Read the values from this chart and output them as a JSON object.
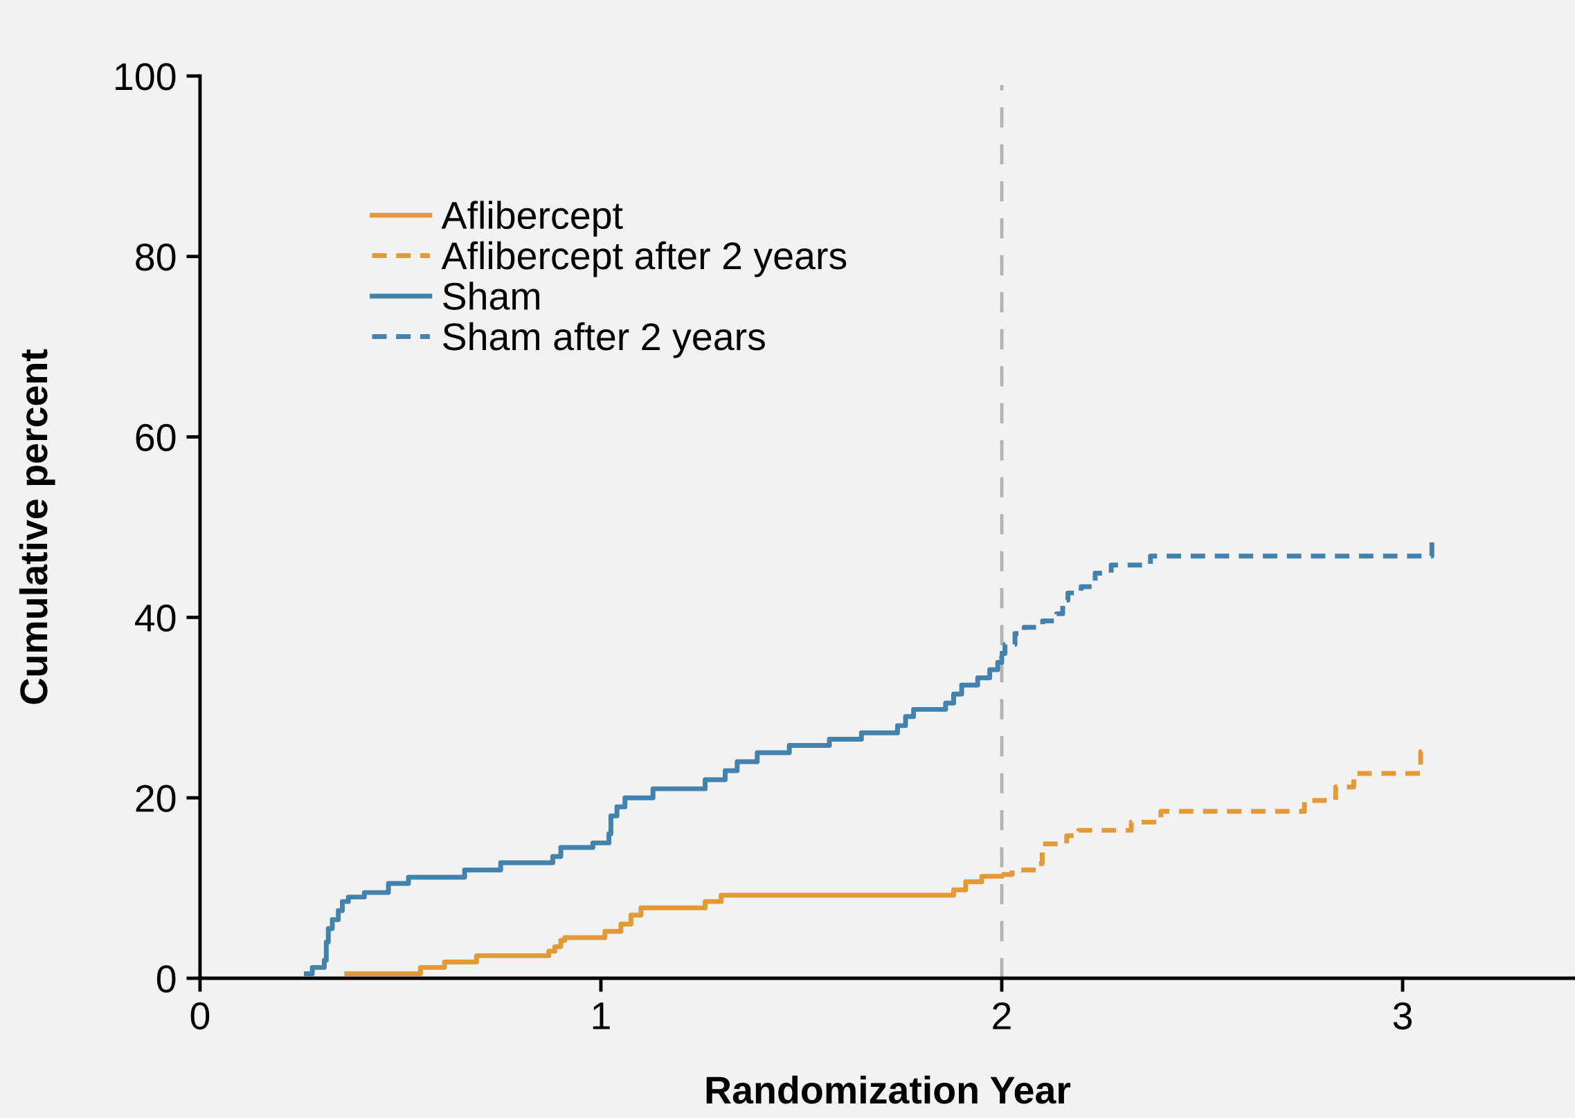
{
  "chart_data": {
    "type": "step",
    "xlabel": "Randomization Year",
    "ylabel": "Cumulative percent",
    "xlim": [
      0,
      3.43
    ],
    "xticks": [
      0,
      1,
      2,
      3
    ],
    "ylim": [
      0,
      100
    ],
    "yticks": [
      0,
      20,
      40,
      60,
      80,
      100
    ],
    "grid": false,
    "legend": "top left",
    "marker": "none",
    "ref_lines": [
      {
        "axis": "x",
        "value": 2,
        "color": "#b3b3b3",
        "line_style": "dashed"
      }
    ],
    "series": [
      {
        "name": "Aflibercept",
        "color": "#e39a36",
        "line_style": "solid",
        "x": [
          0.366,
          0.55,
          0.61,
          0.69,
          0.87,
          0.885,
          0.9,
          0.91,
          1.01,
          1.05,
          1.075,
          1.1,
          1.26,
          1.3,
          1.88,
          1.91,
          1.95,
          2.0
        ],
        "values": [
          0.5,
          1.2,
          1.8,
          2.5,
          3.0,
          3.5,
          4.2,
          4.5,
          5.2,
          6.0,
          7.0,
          7.8,
          8.5,
          9.2,
          9.8,
          10.7,
          11.3,
          11.3
        ]
      },
      {
        "name": "Aflibercept after 2 years",
        "color": "#e39a36",
        "line_style": "dashed",
        "x": [
          2.0,
          2.026,
          2.085,
          2.101,
          2.162,
          2.192,
          2.323,
          2.397,
          2.755,
          2.833,
          2.878,
          3.045,
          3.048
        ],
        "values": [
          11.5,
          12.0,
          12.7,
          14.9,
          15.8,
          16.4,
          17.3,
          18.5,
          19.7,
          21.2,
          22.7,
          25.1,
          25.1
        ]
      },
      {
        "name": "Sham",
        "color": "#4282ad",
        "line_style": "solid",
        "x": [
          0.265,
          0.28,
          0.31,
          0.315,
          0.32,
          0.33,
          0.345,
          0.355,
          0.37,
          0.41,
          0.47,
          0.52,
          0.66,
          0.75,
          0.88,
          0.9,
          0.98,
          1.02,
          1.025,
          1.04,
          1.06,
          1.13,
          1.26,
          1.31,
          1.34,
          1.39,
          1.47,
          1.57,
          1.65,
          1.74,
          1.76,
          1.78,
          1.86,
          1.88,
          1.9,
          1.94,
          1.97,
          1.99,
          2.0
        ],
        "values": [
          0.5,
          1.2,
          2.0,
          4.0,
          5.5,
          6.5,
          7.5,
          8.5,
          9.0,
          9.5,
          10.5,
          11.2,
          12.0,
          12.8,
          13.5,
          14.5,
          15.0,
          16.0,
          18.0,
          19.0,
          20.0,
          21.0,
          22.0,
          23.0,
          24.0,
          25.0,
          25.8,
          26.5,
          27.2,
          28.0,
          29.0,
          29.8,
          30.5,
          31.5,
          32.5,
          33.3,
          34.2,
          35.0,
          35.5
        ]
      },
      {
        "name": "Sham after 2 years",
        "color": "#4282ad",
        "line_style": "dashed",
        "x": [
          1.995,
          2.008,
          2.033,
          2.056,
          2.102,
          2.137,
          2.152,
          2.165,
          2.198,
          2.233,
          2.273,
          2.371,
          3.073,
          3.075
        ],
        "values": [
          36.0,
          37.0,
          38.2,
          38.9,
          39.6,
          40.4,
          41.9,
          42.7,
          43.4,
          44.9,
          45.8,
          46.8,
          48.4,
          48.4
        ]
      }
    ]
  }
}
